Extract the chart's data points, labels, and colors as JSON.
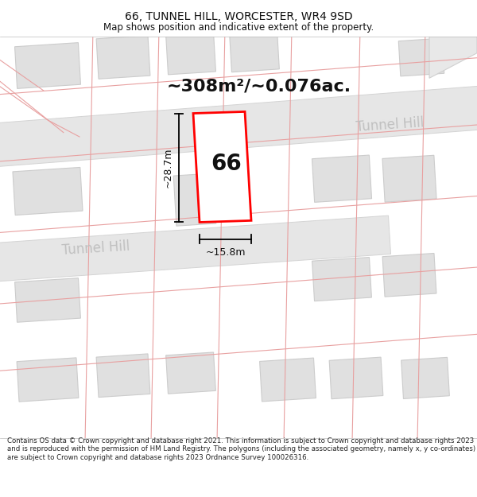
{
  "title": "66, TUNNEL HILL, WORCESTER, WR4 9SD",
  "subtitle": "Map shows position and indicative extent of the property.",
  "footer": "Contains OS data © Crown copyright and database right 2021. This information is subject to Crown copyright and database rights 2023 and is reproduced with the permission of HM Land Registry. The polygons (including the associated geometry, namely x, y co-ordinates) are subject to Crown copyright and database rights 2023 Ordnance Survey 100026316.",
  "area_label": "~308m²/~0.076ac.",
  "width_label": "~15.8m",
  "height_label": "~28.7m",
  "property_number": "66",
  "bg_color": "#ffffff",
  "map_bg_color": "#f9f9f9",
  "road_fill": "#e3e3e3",
  "road_edge": "#d0d0d0",
  "building_fill": "#e0e0e0",
  "building_stroke": "#cccccc",
  "pink_color": "#e8a0a0",
  "property_fill": "#ffffff",
  "property_stroke": "#ff0000",
  "dim_color": "#000000",
  "road_label_color": "#c0c0c0",
  "title_fontsize": 10,
  "subtitle_fontsize": 8.5,
  "area_fontsize": 16,
  "number_fontsize": 20,
  "dim_fontsize": 9,
  "road_label_fontsize": 12,
  "footer_fontsize": 6.2
}
